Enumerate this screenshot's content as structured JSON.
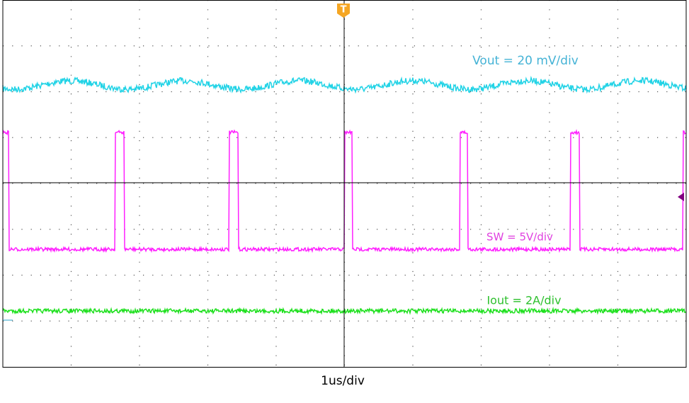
{
  "traces": [
    {
      "label": "Vout = 20 mV/div"
    },
    {
      "label": "SW = 5V/div"
    },
    {
      "label": "Iout = 2A/div"
    }
  ],
  "trigger_marker": "T",
  "x_label": "1us/div"
}
